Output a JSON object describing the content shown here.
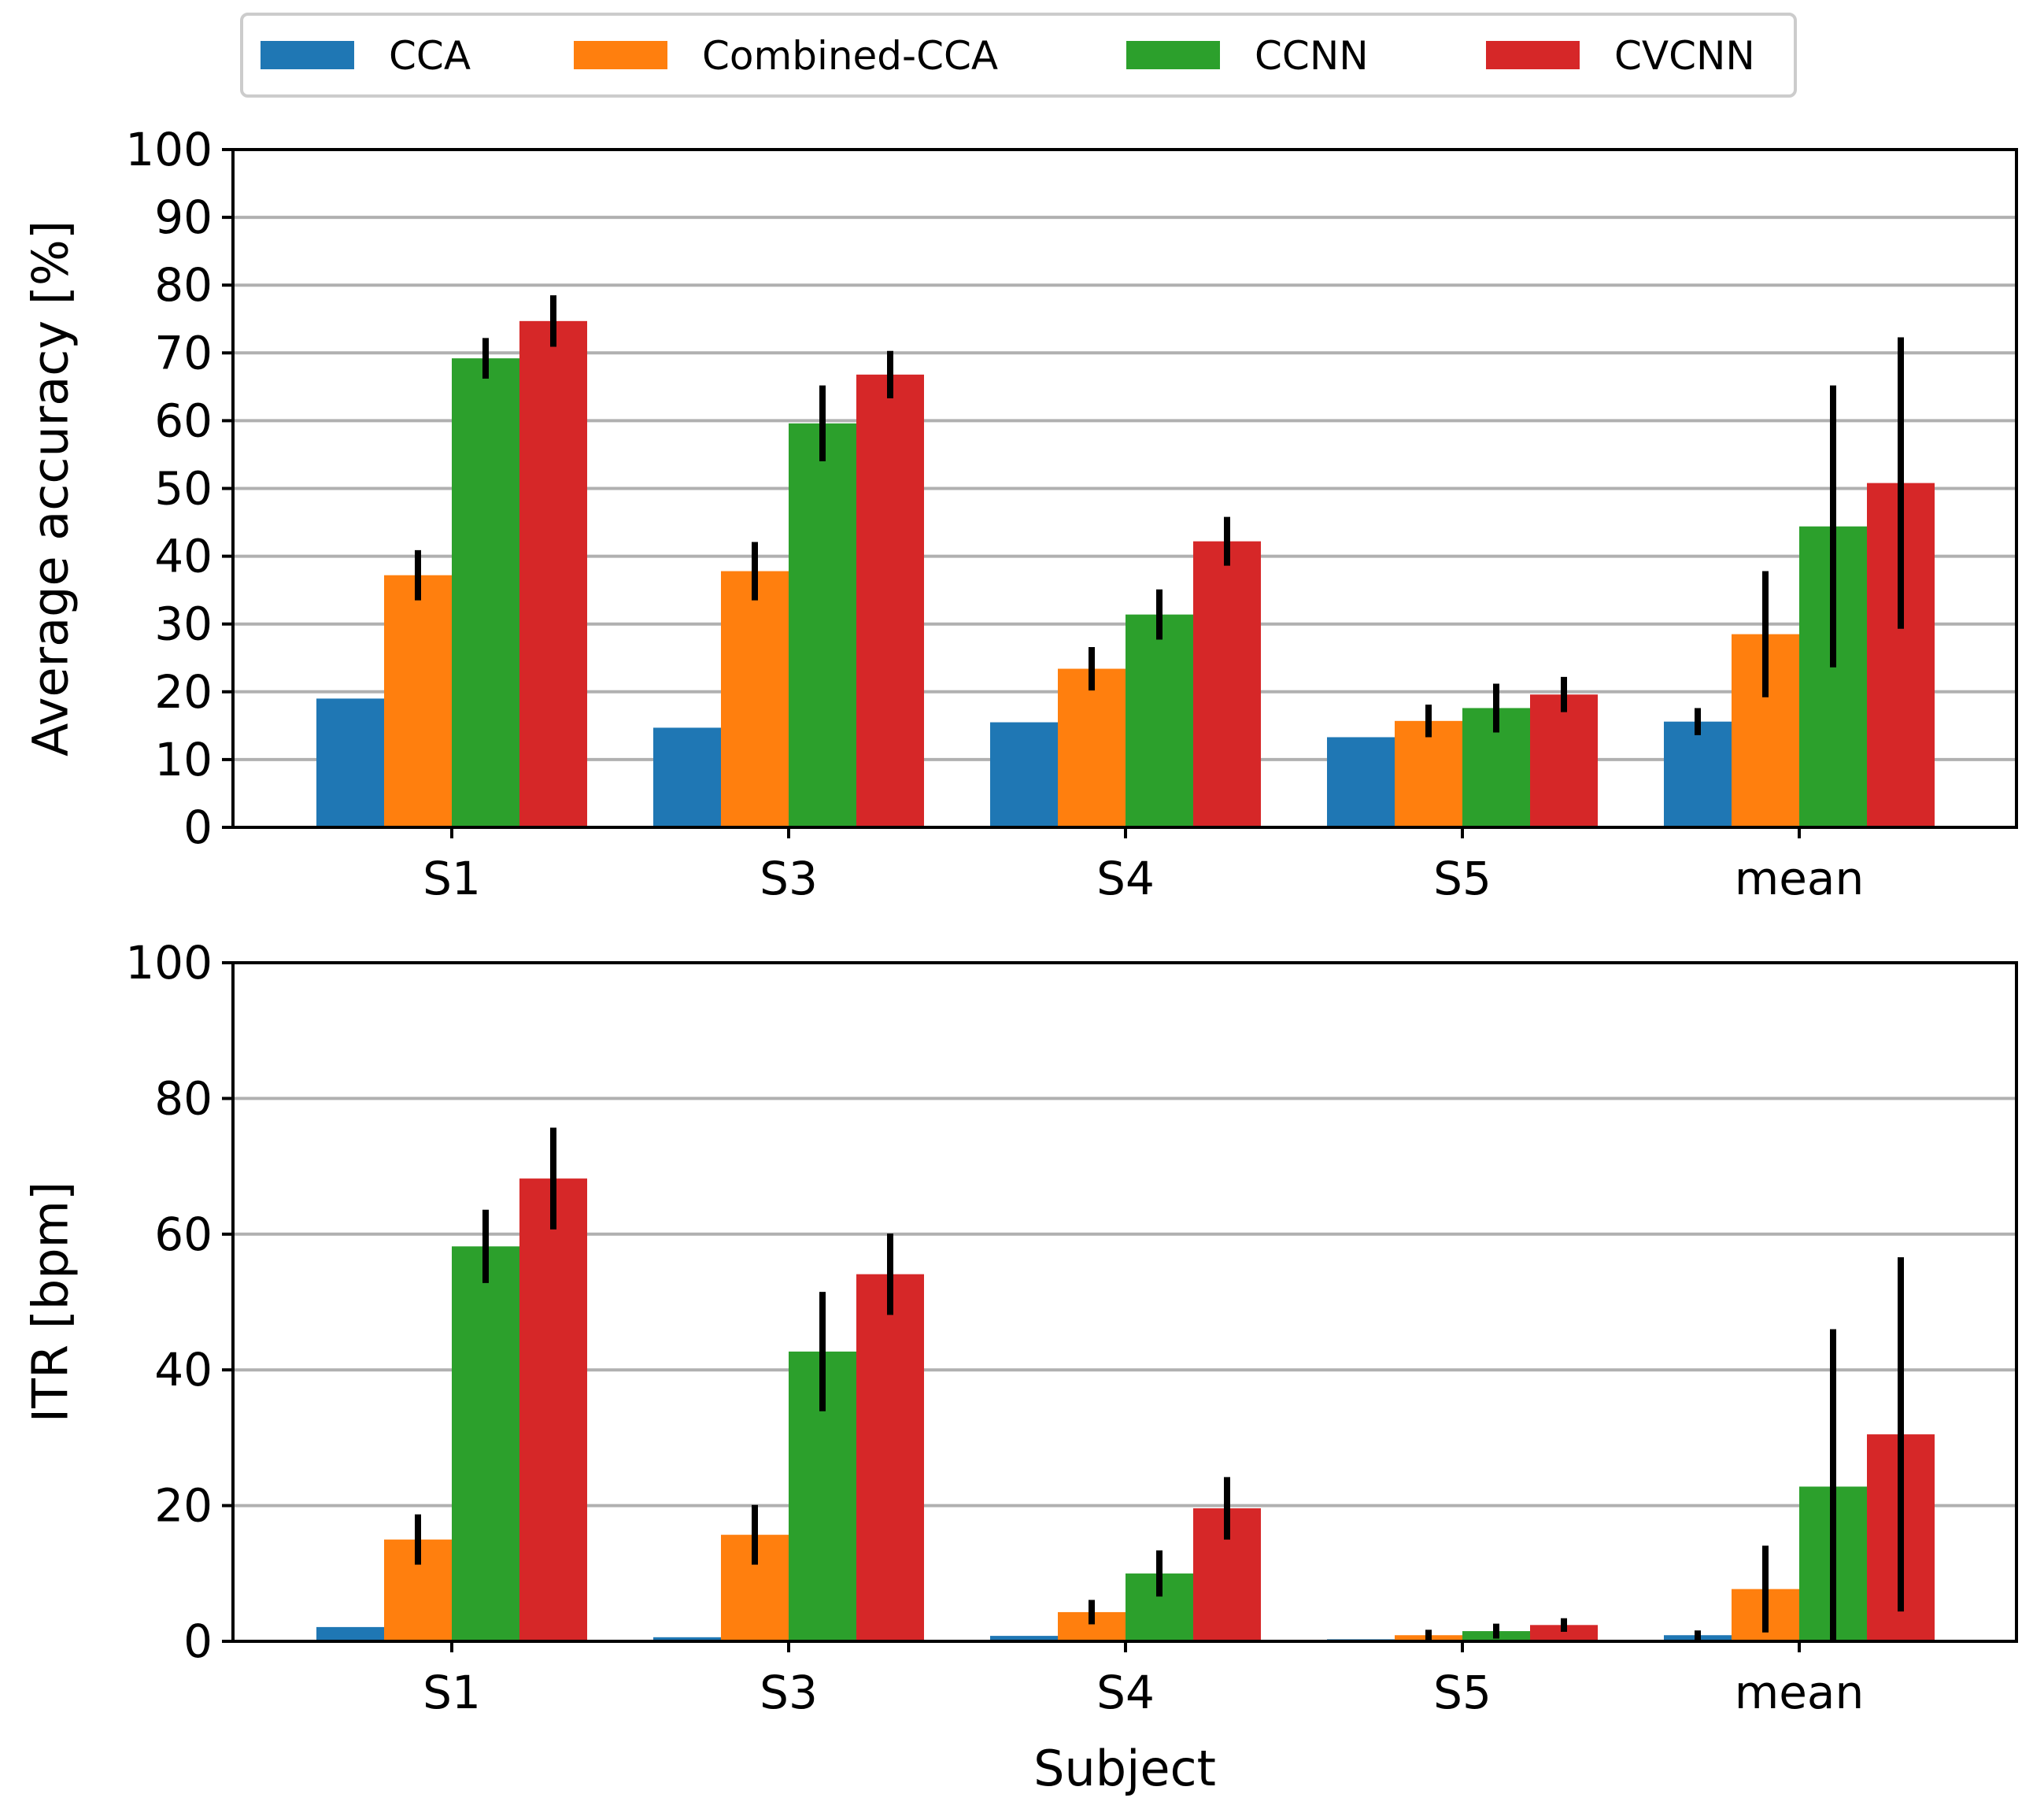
{
  "chart_data": [
    {
      "id": "accuracy",
      "type": "bar",
      "title": "",
      "xlabel": "",
      "ylabel": "Average accuracy [%]",
      "ylim": [
        0,
        100
      ],
      "yticks": [
        0,
        10,
        20,
        30,
        40,
        50,
        60,
        70,
        80,
        90,
        100
      ],
      "grid": true,
      "categories": [
        "S1",
        "S3",
        "S4",
        "S5",
        "mean"
      ],
      "series": [
        {
          "name": "CCA",
          "color": "#1f77b4",
          "values": [
            19.0,
            14.7,
            15.5,
            13.3,
            15.6
          ],
          "errors": [
            0,
            0,
            0,
            0,
            2.0
          ]
        },
        {
          "name": "Combined-CCA",
          "color": "#ff7f0e",
          "values": [
            37.2,
            37.8,
            23.4,
            15.7,
            28.5
          ],
          "errors": [
            3.7,
            4.3,
            3.2,
            2.4,
            9.3
          ]
        },
        {
          "name": "CCNN",
          "color": "#2ca02c",
          "values": [
            69.2,
            59.6,
            31.4,
            17.6,
            44.4
          ],
          "errors": [
            3.0,
            5.6,
            3.7,
            3.6,
            20.8
          ]
        },
        {
          "name": "CVCNN",
          "color": "#d62728",
          "values": [
            74.7,
            66.8,
            42.2,
            19.6,
            50.8
          ],
          "errors": [
            3.8,
            3.5,
            3.6,
            2.6,
            21.5
          ]
        }
      ]
    },
    {
      "id": "itr",
      "type": "bar",
      "title": "",
      "xlabel": "Subject",
      "ylabel": "ITR [bpm]",
      "ylim": [
        0,
        100
      ],
      "yticks": [
        0,
        20,
        40,
        60,
        80,
        100
      ],
      "grid": true,
      "categories": [
        "S1",
        "S3",
        "S4",
        "S5",
        "mean"
      ],
      "series": [
        {
          "name": "CCA",
          "color": "#1f77b4",
          "values": [
            2.1,
            0.6,
            0.8,
            0.3,
            0.9
          ],
          "errors": [
            0,
            0,
            0,
            0,
            0.7
          ]
        },
        {
          "name": "Combined-CCA",
          "color": "#ff7f0e",
          "values": [
            15.0,
            15.7,
            4.3,
            0.9,
            7.7
          ],
          "errors": [
            3.7,
            4.4,
            1.8,
            0.8,
            6.4
          ]
        },
        {
          "name": "CCNN",
          "color": "#2ca02c",
          "values": [
            58.2,
            42.7,
            10.0,
            1.5,
            22.8
          ],
          "errors": [
            5.4,
            8.8,
            3.4,
            1.1,
            23.2
          ]
        },
        {
          "name": "CVCNN",
          "color": "#d62728",
          "values": [
            68.2,
            54.1,
            19.6,
            2.4,
            30.5
          ],
          "errors": [
            7.5,
            6.0,
            4.6,
            1.0,
            26.1
          ]
        }
      ]
    }
  ],
  "legend": {
    "position": "top-center",
    "items": [
      "CCA",
      "Combined-CCA",
      "CCNN",
      "CVCNN"
    ]
  }
}
